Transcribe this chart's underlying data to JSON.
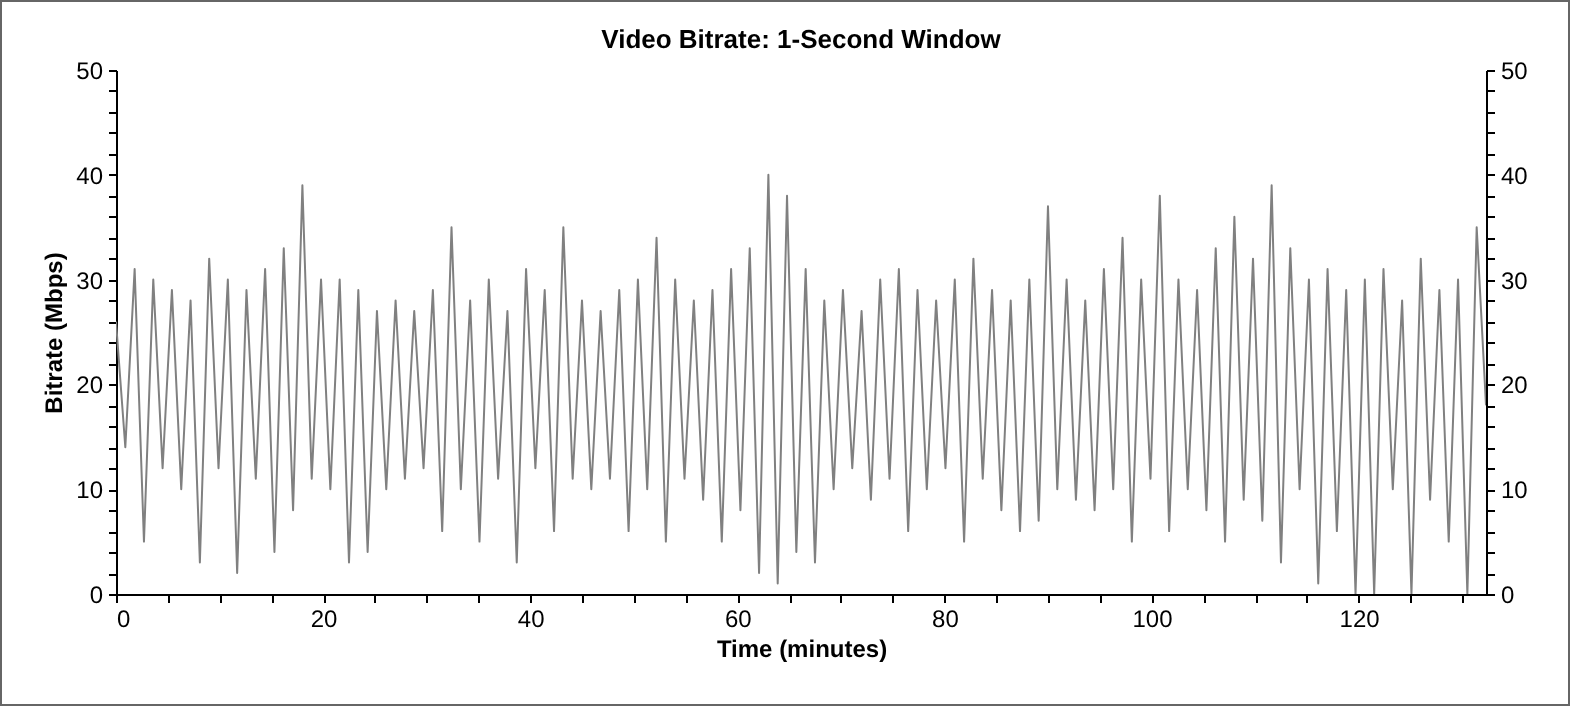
{
  "chart_data": {
    "type": "line",
    "title": "Video Bitrate: 1-Second Window",
    "xlabel": "Time (minutes)",
    "ylabel": "Bitrate (Mbps)",
    "x": [
      0,
      0.9,
      1.8,
      2.7,
      3.6,
      4.5,
      5.4,
      6.3,
      7.2,
      8.1,
      9,
      9.9,
      10.8,
      11.7,
      12.6,
      13.5,
      14.4,
      15.3,
      16.2,
      17.1,
      18,
      18.9,
      19.8,
      20.7,
      21.6,
      22.5,
      23.4,
      24.3,
      25.2,
      26.1,
      27,
      27.9,
      28.8,
      29.7,
      30.6,
      31.5,
      32.4,
      33.3,
      34.2,
      35.1,
      36,
      36.9,
      37.8,
      38.7,
      39.6,
      40.5,
      41.4,
      42.3,
      43.2,
      44.1,
      45,
      45.9,
      46.8,
      47.7,
      48.6,
      49.5,
      50.4,
      51.3,
      52.2,
      53.1,
      54,
      54.9,
      55.8,
      56.7,
      57.6,
      58.5,
      59.4,
      60.3,
      61.2,
      62.1,
      63,
      63.9,
      64.8,
      65.7,
      66.6,
      67.5,
      68.4,
      69.3,
      70.2,
      71.1,
      72,
      72.9,
      73.8,
      74.7,
      75.6,
      76.5,
      77.4,
      78.3,
      79.2,
      80.1,
      81,
      81.9,
      82.8,
      83.7,
      84.6,
      85.5,
      86.4,
      87.3,
      88.2,
      89.1,
      90,
      90.9,
      91.8,
      92.7,
      93.6,
      94.5,
      95.4,
      96.3,
      97.2,
      98.1,
      99,
      99.9,
      100.8,
      101.7,
      102.6,
      103.5,
      104.4,
      105.3,
      106.2,
      107.1,
      108,
      108.9,
      109.8,
      110.7,
      111.6,
      112.5,
      113.4,
      114.3,
      115.2,
      116.1,
      117,
      117.9,
      118.8,
      119.7,
      120.6,
      121.5,
      122.4,
      123.3,
      124.2,
      125.1,
      126,
      126.9,
      127.8,
      128.7,
      129.6,
      130.5,
      131.4,
      132.3
    ],
    "series": [
      {
        "color": "#808080",
        "values": [
          26,
          14,
          31,
          5,
          30,
          12,
          29,
          10,
          28,
          3,
          32,
          12,
          30,
          2,
          29,
          11,
          31,
          4,
          33,
          8,
          39,
          11,
          30,
          10,
          30,
          3,
          29,
          4,
          27,
          10,
          28,
          11,
          27,
          12,
          29,
          6,
          35,
          10,
          28,
          5,
          30,
          11,
          27,
          3,
          31,
          12,
          29,
          6,
          35,
          11,
          28,
          10,
          27,
          11,
          29,
          6,
          30,
          10,
          34,
          5,
          30,
          11,
          28,
          9,
          29,
          5,
          31,
          8,
          33,
          2,
          40,
          1,
          38,
          4,
          31,
          3,
          28,
          10,
          29,
          12,
          27,
          9,
          30,
          11,
          31,
          6,
          29,
          10,
          28,
          12,
          30,
          5,
          32,
          11,
          29,
          8,
          28,
          6,
          30,
          7,
          37,
          10,
          30,
          9,
          28,
          8,
          31,
          10,
          34,
          5,
          30,
          11,
          38,
          6,
          30,
          10,
          29,
          8,
          33,
          5,
          36,
          9,
          32,
          7,
          39,
          3,
          33,
          10,
          30,
          1,
          31,
          6,
          29,
          0,
          30,
          0,
          31,
          10,
          28,
          0,
          32,
          9,
          29,
          5,
          30,
          0,
          35,
          18
        ]
      }
    ],
    "xlim": [
      0,
      132.3
    ],
    "xticks": [
      0,
      {
        "value": 5,
        "label": null
      },
      {
        "value": 10,
        "label": null
      },
      {
        "value": 15,
        "label": null
      },
      20,
      {
        "value": 25,
        "label": null
      },
      {
        "value": 30,
        "label": null
      },
      {
        "value": 35,
        "label": null
      },
      40,
      {
        "value": 45,
        "label": null
      },
      {
        "value": 50,
        "label": null
      },
      {
        "value": 55,
        "label": null
      },
      60,
      {
        "value": 65,
        "label": null
      },
      {
        "value": 70,
        "label": null
      },
      {
        "value": 75,
        "label": null
      },
      80,
      {
        "value": 85,
        "label": null
      },
      {
        "value": 90,
        "label": null
      },
      {
        "value": 95,
        "label": null
      },
      100,
      {
        "value": 105,
        "label": null
      },
      {
        "value": 110,
        "label": null
      },
      {
        "value": 115,
        "label": null
      },
      120,
      {
        "value": 125,
        "label": null
      },
      {
        "value": 130,
        "label": null
      }
    ],
    "ylim": [
      0,
      50
    ],
    "yticks": [
      0,
      {
        "value": 2,
        "label": null
      },
      {
        "value": 4,
        "label": null
      },
      {
        "value": 6,
        "label": null
      },
      {
        "value": 8,
        "label": null
      },
      10,
      {
        "value": 12,
        "label": null
      },
      {
        "value": 14,
        "label": null
      },
      {
        "value": 16,
        "label": null
      },
      {
        "value": 18,
        "label": null
      },
      20,
      {
        "value": 22,
        "label": null
      },
      {
        "value": 24,
        "label": null
      },
      {
        "value": 26,
        "label": null
      },
      {
        "value": 28,
        "label": null
      },
      30,
      {
        "value": 32,
        "label": null
      },
      {
        "value": 34,
        "label": null
      },
      {
        "value": 36,
        "label": null
      },
      {
        "value": 38,
        "label": null
      },
      40,
      {
        "value": 42,
        "label": null
      },
      {
        "value": 44,
        "label": null
      },
      {
        "value": 46,
        "label": null
      },
      {
        "value": 48,
        "label": null
      },
      50
    ],
    "y2lim": [
      0,
      50
    ],
    "y2ticks": [
      0,
      {
        "value": 2,
        "label": null
      },
      {
        "value": 4,
        "label": null
      },
      {
        "value": 6,
        "label": null
      },
      {
        "value": 8,
        "label": null
      },
      10,
      {
        "value": 12,
        "label": null
      },
      {
        "value": 14,
        "label": null
      },
      {
        "value": 16,
        "label": null
      },
      {
        "value": 18,
        "label": null
      },
      20,
      {
        "value": 22,
        "label": null
      },
      {
        "value": 24,
        "label": null
      },
      {
        "value": 26,
        "label": null
      },
      {
        "value": 28,
        "label": null
      },
      30,
      {
        "value": 32,
        "label": null
      },
      {
        "value": 34,
        "label": null
      },
      {
        "value": 36,
        "label": null
      },
      {
        "value": 38,
        "label": null
      },
      40,
      {
        "value": 42,
        "label": null
      },
      {
        "value": 44,
        "label": null
      },
      {
        "value": 46,
        "label": null
      },
      {
        "value": 48,
        "label": null
      },
      50
    ],
    "grid": false,
    "legend": false,
    "marker": "none",
    "line_style": "solid"
  }
}
